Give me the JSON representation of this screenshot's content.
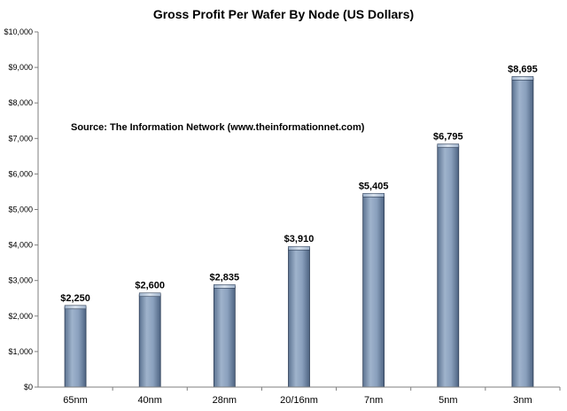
{
  "chart_data": {
    "type": "bar",
    "title": "Gross Profit Per Wafer By Node (US Dollars)",
    "annotation": "Source: The Information Network (www.theinformationnet.com)",
    "categories": [
      "65nm",
      "40nm",
      "28nm",
      "20/16nm",
      "7nm",
      "5nm",
      "3nm"
    ],
    "values": [
      2250,
      2600,
      2835,
      3910,
      5405,
      6795,
      8695
    ],
    "data_labels": [
      "$2,250",
      "$2,600",
      "$2,835",
      "$3,910",
      "$5,405",
      "$6,795",
      "$8,695"
    ],
    "ylim": [
      0,
      10000
    ],
    "yticks": [
      0,
      1000,
      2000,
      3000,
      4000,
      5000,
      6000,
      7000,
      8000,
      9000,
      10000
    ],
    "ytick_labels": [
      "$0",
      "$1,000",
      "$2,000",
      "$3,000",
      "$4,000",
      "$5,000",
      "$6,000",
      "$7,000",
      "$8,000",
      "$9,000",
      "$10,000"
    ],
    "grid": false,
    "bar_color": "#8aa0bd"
  }
}
